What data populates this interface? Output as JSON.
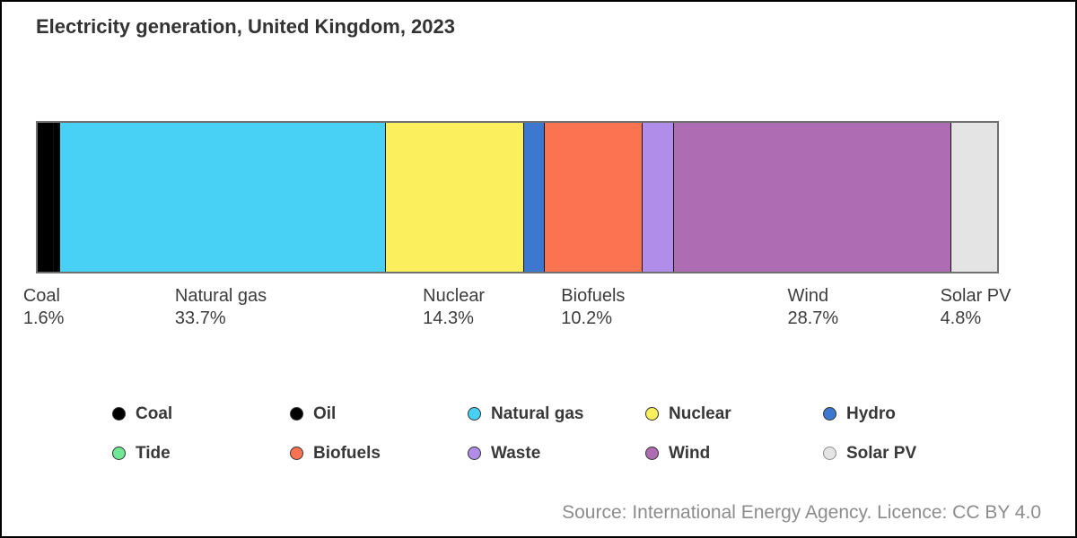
{
  "header": {
    "title": "Electricity generation, United Kingdom, 2023"
  },
  "footer": {
    "source": "Source: International Energy Agency. Licence: CC BY 4.0"
  },
  "chart_data": {
    "type": "bar",
    "subtype": "horizontal-stacked-100-percent",
    "title": "Electricity generation, United Kingdom, 2023",
    "unit": "%",
    "legend_position": "bottom",
    "grid": false,
    "series": [
      {
        "name": "Coal",
        "value": 1.6,
        "color": "#000000",
        "label_shown": true,
        "pct_label": "1.6%"
      },
      {
        "name": "Oil",
        "value": 0.6,
        "color": "#000000",
        "label_shown": false,
        "estimated": true
      },
      {
        "name": "Natural gas",
        "value": 33.7,
        "color": "#48D1F5",
        "label_shown": true,
        "pct_label": "33.7%"
      },
      {
        "name": "Nuclear",
        "value": 14.3,
        "color": "#FCEF5E",
        "label_shown": true,
        "pct_label": "14.3%"
      },
      {
        "name": "Hydro",
        "value": 2.1,
        "color": "#3C78CF",
        "label_shown": false,
        "estimated": true
      },
      {
        "name": "Tide",
        "value": 0,
        "color": "#6FE795",
        "label_shown": false,
        "estimated": true
      },
      {
        "name": "Biofuels",
        "value": 10.2,
        "color": "#FB7350",
        "label_shown": true,
        "pct_label": "10.2%"
      },
      {
        "name": "Waste",
        "value": 3.2,
        "color": "#B08DE9",
        "label_shown": false,
        "estimated": true
      },
      {
        "name": "Wind",
        "value": 28.7,
        "color": "#AE6CB2",
        "label_shown": true,
        "pct_label": "28.7%"
      },
      {
        "name": "Solar PV",
        "value": 4.8,
        "color": "#E4E4E4",
        "label_shown": true,
        "pct_label": "4.8%"
      }
    ],
    "legend": [
      {
        "label": "Coal",
        "color": "#000000"
      },
      {
        "label": "Oil",
        "color": "#000000"
      },
      {
        "label": "Natural gas",
        "color": "#48D1F5"
      },
      {
        "label": "Nuclear",
        "color": "#FCEF5E"
      },
      {
        "label": "Hydro",
        "color": "#3C78CF"
      },
      {
        "label": "Tide",
        "color": "#6FE795"
      },
      {
        "label": "Biofuels",
        "color": "#FB7350"
      },
      {
        "label": "Waste",
        "color": "#B08DE9"
      },
      {
        "label": "Wind",
        "color": "#AE6CB2"
      },
      {
        "label": "Solar PV",
        "color": "#E4E4E4",
        "dot_border": "#8F8F8F"
      }
    ]
  }
}
